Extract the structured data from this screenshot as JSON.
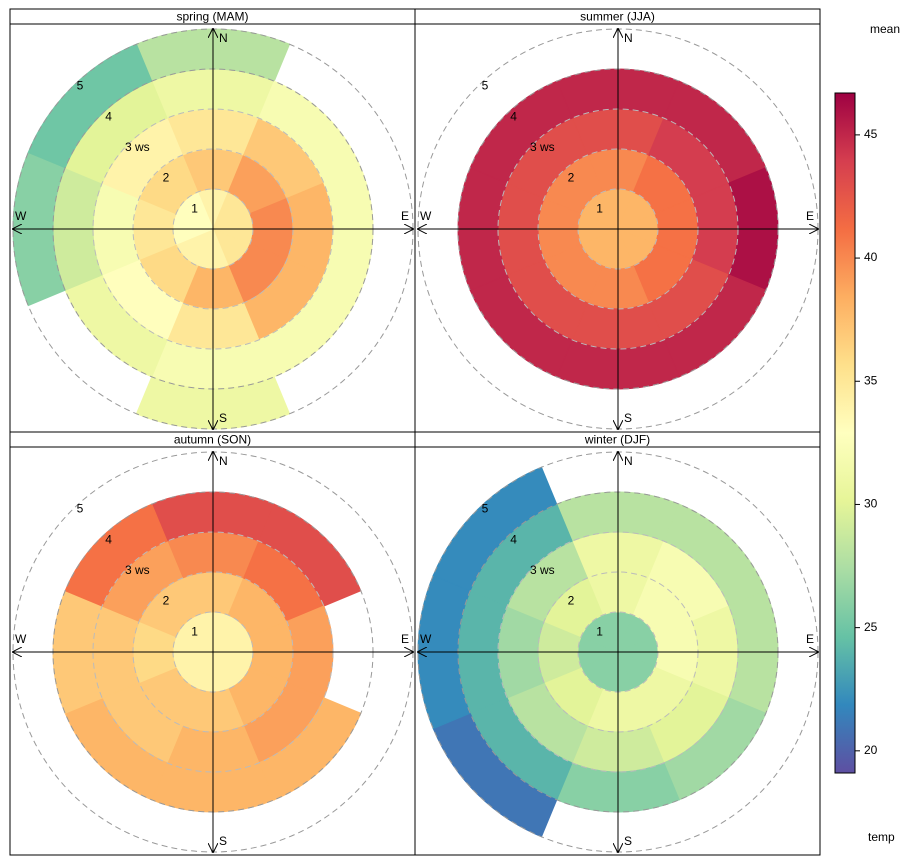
{
  "chart_data": {
    "type": "polar",
    "panels": [
      {
        "title": "spring (MAM)",
        "values": [
          [
            34,
            37,
            35,
            31,
            28
          ],
          [
            35,
            39,
            37,
            32,
            null
          ],
          [
            35,
            40,
            38,
            32,
            null
          ],
          [
            35,
            40,
            38,
            32,
            null
          ],
          [
            34,
            38,
            35,
            32,
            31
          ],
          [
            34,
            36,
            33,
            31,
            null
          ],
          [
            33,
            35,
            32,
            29,
            26
          ],
          [
            33,
            36,
            34,
            30,
            25
          ]
        ]
      },
      {
        "title": "summer (JJA)",
        "values": [
          [
            38,
            40,
            43,
            45,
            null
          ],
          [
            38,
            41,
            44,
            45,
            null
          ],
          [
            38,
            41,
            44,
            46,
            null
          ],
          [
            38,
            41,
            43,
            45,
            null
          ],
          [
            38,
            40,
            43,
            45,
            null
          ],
          [
            38,
            40,
            43,
            45,
            null
          ],
          [
            38,
            40,
            43,
            45,
            null
          ],
          [
            38,
            40,
            43,
            45,
            null
          ]
        ]
      },
      {
        "title": "autumn (SON)",
        "values": [
          [
            34,
            37,
            40,
            43,
            null
          ],
          [
            34,
            38,
            41,
            43,
            null
          ],
          [
            34,
            38,
            39,
            null,
            null
          ],
          [
            34,
            38,
            39,
            38,
            null
          ],
          [
            34,
            37,
            38,
            38,
            null
          ],
          [
            34,
            37,
            37,
            38,
            null
          ],
          [
            34,
            36,
            37,
            37,
            null
          ],
          [
            34,
            37,
            39,
            41,
            null
          ]
        ]
      },
      {
        "title": "winter (DJF)",
        "values": [
          [
            26,
            31,
            31,
            28,
            null
          ],
          [
            26,
            32,
            32,
            28,
            null
          ],
          [
            26,
            32,
            31,
            28,
            null
          ],
          [
            26,
            31,
            30,
            27,
            null
          ],
          [
            26,
            31,
            29,
            26,
            null
          ],
          [
            26,
            30,
            28,
            24,
            21
          ],
          [
            26,
            29,
            27,
            24,
            22
          ],
          [
            26,
            30,
            28,
            24,
            22
          ]
        ]
      }
    ],
    "directions": [
      "N",
      "E",
      "S",
      "W"
    ],
    "rlim": [
      0,
      5
    ],
    "rticks": [
      1,
      2,
      {
        "value": 3,
        "label": "3 ws"
      },
      4,
      5
    ],
    "colorbar": {
      "title": "mean",
      "label": "temp",
      "ylim": [
        19.1,
        46.7
      ],
      "yticks": [
        20,
        25,
        30,
        35,
        40,
        45
      ],
      "colormap": [
        "#5e4fa2",
        "#3288bd",
        "#66c2a5",
        "#abdda4",
        "#e6f598",
        "#ffffbf",
        "#fee08b",
        "#fdae61",
        "#f46d43",
        "#d53e4f",
        "#9e0142"
      ]
    }
  }
}
